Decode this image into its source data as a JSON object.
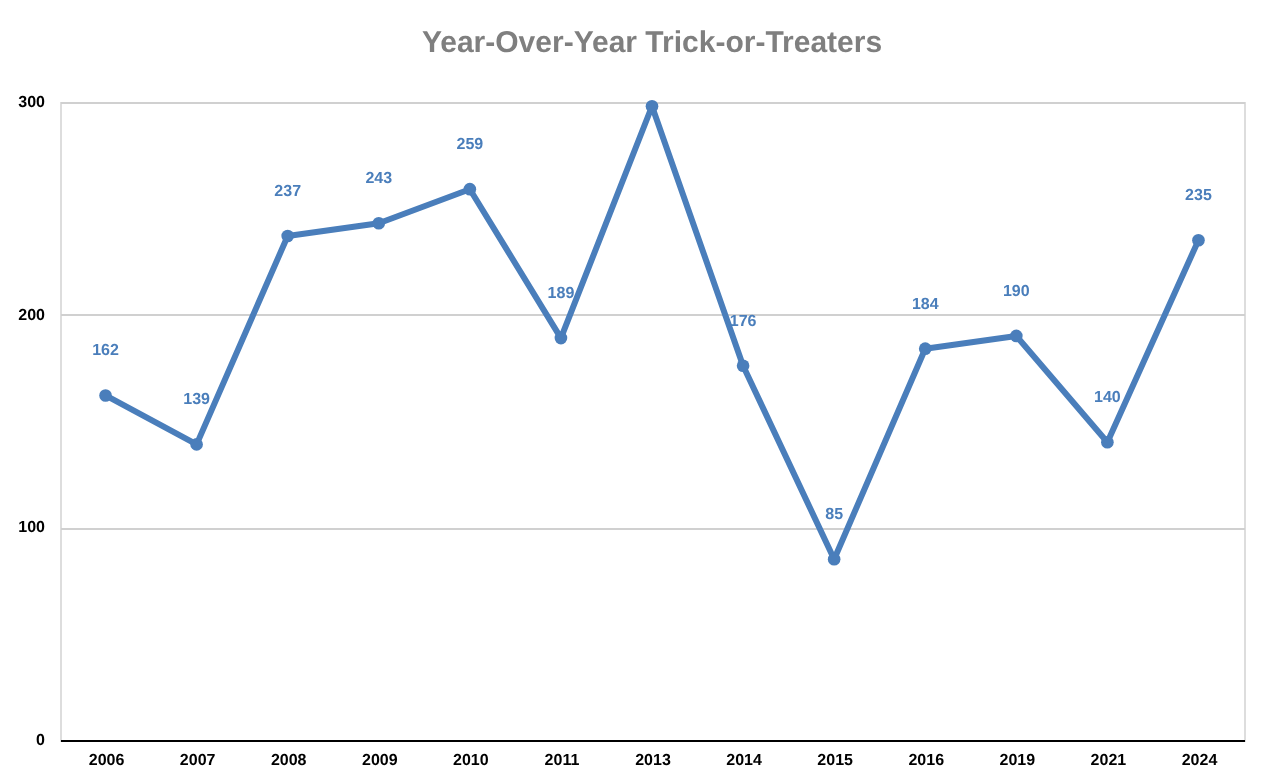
{
  "chart_data": {
    "type": "line",
    "title": "Year-Over-Year Trick-or-Treaters",
    "categories": [
      "2006",
      "2007",
      "2008",
      "2009",
      "2010",
      "2011",
      "2013",
      "2014",
      "2015",
      "2016",
      "2019",
      "2021",
      "2024"
    ],
    "series": [
      {
        "color": "#4a7ebb",
        "values": [
          162,
          139,
          237,
          243,
          259,
          189,
          298,
          176,
          85,
          184,
          190,
          140,
          235
        ],
        "value_labels": [
          "162",
          "139",
          "237",
          "243",
          "259",
          "189",
          null,
          "176",
          "85",
          "184",
          "190",
          "140",
          "235"
        ]
      }
    ],
    "ylim": [
      0,
      300
    ],
    "yticks": [
      0,
      100,
      200,
      300
    ],
    "grid": "y",
    "marker": "circle",
    "line_style": "solid"
  }
}
